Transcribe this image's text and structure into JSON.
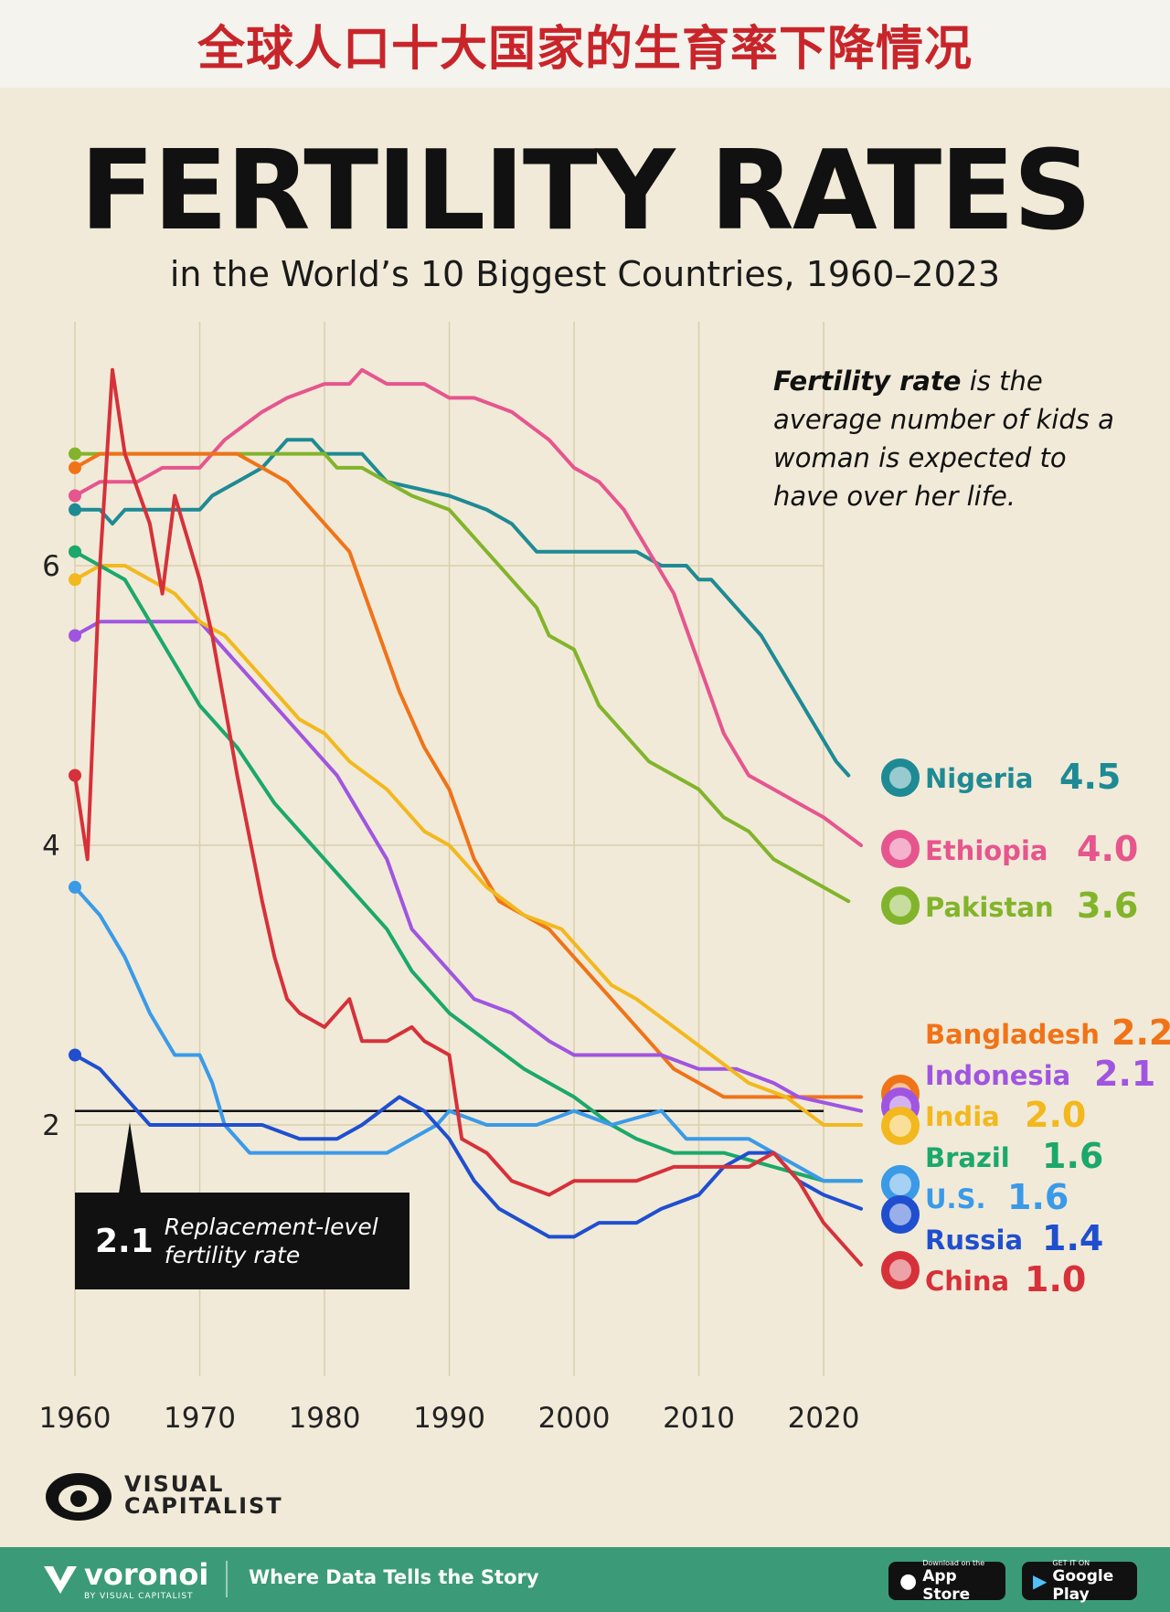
{
  "banner": {
    "text": "全球人口十大国家的生育率下降情况"
  },
  "header": {
    "title": "FERTILITY RATES",
    "subtitle": "in the World’s 10 Biggest Countries, 1960–2023"
  },
  "definition": {
    "term": "Fertility rate",
    "text": " is the average number of kids a woman is expected to have over her life."
  },
  "replacement": {
    "value": "2.1",
    "label_line1": "Replacement-level",
    "label_line2": "fertility rate"
  },
  "branding": {
    "logo_text_1": "VISUAL",
    "logo_text_2": "CAPITALIST",
    "voronoi": "voronoi",
    "voronoi_by": "BY VISUAL CAPITALIST",
    "tagline": "Where Data Tells the Story",
    "appstore_small": "Download on the",
    "appstore_big": "App Store",
    "googleplay_small": "GET IT ON",
    "googleplay_big": "Google Play"
  },
  "chart_data": {
    "type": "line",
    "title": "FERTILITY RATES",
    "subtitle": "in the World’s 10 Biggest Countries, 1960–2023",
    "x_ticks": [
      1960,
      1970,
      1980,
      1990,
      2000,
      2010,
      2020
    ],
    "y_ticks": [
      2,
      4,
      6
    ],
    "xlim": [
      1960,
      2023
    ],
    "ylim": [
      0,
      7.6
    ],
    "grid": "vertical",
    "reference_line": {
      "value": 2.1,
      "label": "Replacement-level fertility rate"
    },
    "series": [
      {
        "name": "Nigeria",
        "value_label": "4.5",
        "color": "#1e8a94",
        "icon": "nigeria-flag",
        "points": [
          [
            1960,
            6.4
          ],
          [
            1962,
            6.4
          ],
          [
            1963,
            6.3
          ],
          [
            1964,
            6.4
          ],
          [
            1970,
            6.4
          ],
          [
            1971,
            6.5
          ],
          [
            1973,
            6.6
          ],
          [
            1975,
            6.7
          ],
          [
            1977,
            6.9
          ],
          [
            1979,
            6.9
          ],
          [
            1980,
            6.8
          ],
          [
            1983,
            6.8
          ],
          [
            1985,
            6.6
          ],
          [
            1990,
            6.5
          ],
          [
            1993,
            6.4
          ],
          [
            1995,
            6.3
          ],
          [
            1997,
            6.1
          ],
          [
            2005,
            6.1
          ],
          [
            2007,
            6.0
          ],
          [
            2009,
            6.0
          ],
          [
            2010,
            5.9
          ],
          [
            2011,
            5.9
          ],
          [
            2013,
            5.7
          ],
          [
            2015,
            5.5
          ],
          [
            2017,
            5.2
          ],
          [
            2019,
            4.9
          ],
          [
            2021,
            4.6
          ],
          [
            2022,
            4.5
          ]
        ]
      },
      {
        "name": "Ethiopia",
        "value_label": "4.0",
        "color": "#e6558e",
        "icon": "ethiopia-flag",
        "points": [
          [
            1960,
            6.5
          ],
          [
            1962,
            6.6
          ],
          [
            1965,
            6.6
          ],
          [
            1967,
            6.7
          ],
          [
            1970,
            6.7
          ],
          [
            1972,
            6.9
          ],
          [
            1975,
            7.1
          ],
          [
            1977,
            7.2
          ],
          [
            1980,
            7.3
          ],
          [
            1982,
            7.3
          ],
          [
            1983,
            7.4
          ],
          [
            1985,
            7.3
          ],
          [
            1988,
            7.3
          ],
          [
            1990,
            7.2
          ],
          [
            1992,
            7.2
          ],
          [
            1995,
            7.1
          ],
          [
            1998,
            6.9
          ],
          [
            2000,
            6.7
          ],
          [
            2002,
            6.6
          ],
          [
            2004,
            6.4
          ],
          [
            2006,
            6.1
          ],
          [
            2008,
            5.8
          ],
          [
            2010,
            5.3
          ],
          [
            2012,
            4.8
          ],
          [
            2014,
            4.5
          ],
          [
            2016,
            4.4
          ],
          [
            2018,
            4.3
          ],
          [
            2020,
            4.2
          ],
          [
            2023,
            4.0
          ]
        ]
      },
      {
        "name": "Pakistan",
        "value_label": "3.6",
        "color": "#82b42b",
        "icon": "pakistan-flag",
        "points": [
          [
            1960,
            6.8
          ],
          [
            1965,
            6.8
          ],
          [
            1970,
            6.8
          ],
          [
            1975,
            6.8
          ],
          [
            1980,
            6.8
          ],
          [
            1981,
            6.7
          ],
          [
            1983,
            6.7
          ],
          [
            1985,
            6.6
          ],
          [
            1987,
            6.5
          ],
          [
            1990,
            6.4
          ],
          [
            1993,
            6.1
          ],
          [
            1995,
            5.9
          ],
          [
            1997,
            5.7
          ],
          [
            1998,
            5.5
          ],
          [
            2000,
            5.4
          ],
          [
            2002,
            5.0
          ],
          [
            2004,
            4.8
          ],
          [
            2006,
            4.6
          ],
          [
            2008,
            4.5
          ],
          [
            2010,
            4.4
          ],
          [
            2012,
            4.2
          ],
          [
            2014,
            4.1
          ],
          [
            2016,
            3.9
          ],
          [
            2018,
            3.8
          ],
          [
            2020,
            3.7
          ],
          [
            2022,
            3.6
          ]
        ]
      },
      {
        "name": "Bangladesh",
        "value_label": "2.2",
        "color": "#f07318",
        "icon": "bangladesh-flag",
        "points": [
          [
            1960,
            6.7
          ],
          [
            1962,
            6.8
          ],
          [
            1965,
            6.8
          ],
          [
            1970,
            6.8
          ],
          [
            1973,
            6.8
          ],
          [
            1975,
            6.7
          ],
          [
            1977,
            6.6
          ],
          [
            1979,
            6.4
          ],
          [
            1982,
            6.1
          ],
          [
            1984,
            5.6
          ],
          [
            1986,
            5.1
          ],
          [
            1988,
            4.7
          ],
          [
            1990,
            4.4
          ],
          [
            1992,
            3.9
          ],
          [
            1994,
            3.6
          ],
          [
            1996,
            3.5
          ],
          [
            1998,
            3.4
          ],
          [
            2000,
            3.2
          ],
          [
            2004,
            2.8
          ],
          [
            2006,
            2.6
          ],
          [
            2008,
            2.4
          ],
          [
            2010,
            2.3
          ],
          [
            2012,
            2.2
          ],
          [
            2016,
            2.2
          ],
          [
            2023,
            2.2
          ]
        ]
      },
      {
        "name": "Indonesia",
        "value_label": "2.1",
        "color": "#a055e0",
        "icon": "indonesia-flag",
        "points": [
          [
            1960,
            5.5
          ],
          [
            1962,
            5.6
          ],
          [
            1970,
            5.6
          ],
          [
            1973,
            5.3
          ],
          [
            1975,
            5.1
          ],
          [
            1978,
            4.8
          ],
          [
            1981,
            4.5
          ],
          [
            1983,
            4.2
          ],
          [
            1985,
            3.9
          ],
          [
            1987,
            3.4
          ],
          [
            1989,
            3.2
          ],
          [
            1992,
            2.9
          ],
          [
            1995,
            2.8
          ],
          [
            1998,
            2.6
          ],
          [
            2000,
            2.5
          ],
          [
            2004,
            2.5
          ],
          [
            2007,
            2.5
          ],
          [
            2010,
            2.4
          ],
          [
            2013,
            2.4
          ],
          [
            2016,
            2.3
          ],
          [
            2018,
            2.2
          ],
          [
            2023,
            2.1
          ]
        ]
      },
      {
        "name": "India",
        "value_label": "2.0",
        "color": "#f2b81e",
        "icon": "india-flag",
        "points": [
          [
            1960,
            5.9
          ],
          [
            1962,
            6.0
          ],
          [
            1964,
            6.0
          ],
          [
            1966,
            5.9
          ],
          [
            1968,
            5.8
          ],
          [
            1970,
            5.6
          ],
          [
            1972,
            5.5
          ],
          [
            1975,
            5.2
          ],
          [
            1978,
            4.9
          ],
          [
            1980,
            4.8
          ],
          [
            1982,
            4.6
          ],
          [
            1985,
            4.4
          ],
          [
            1988,
            4.1
          ],
          [
            1990,
            4.0
          ],
          [
            1993,
            3.7
          ],
          [
            1996,
            3.5
          ],
          [
            1999,
            3.4
          ],
          [
            2001,
            3.2
          ],
          [
            2003,
            3.0
          ],
          [
            2005,
            2.9
          ],
          [
            2008,
            2.7
          ],
          [
            2011,
            2.5
          ],
          [
            2014,
            2.3
          ],
          [
            2017,
            2.2
          ],
          [
            2020,
            2.0
          ],
          [
            2023,
            2.0
          ]
        ]
      },
      {
        "name": "Brazil",
        "value_label": "1.6",
        "color": "#1ba86b",
        "icon": "brazil-flag",
        "points": [
          [
            1960,
            6.1
          ],
          [
            1962,
            6.0
          ],
          [
            1964,
            5.9
          ],
          [
            1966,
            5.6
          ],
          [
            1968,
            5.3
          ],
          [
            1970,
            5.0
          ],
          [
            1973,
            4.7
          ],
          [
            1976,
            4.3
          ],
          [
            1979,
            4.0
          ],
          [
            1982,
            3.7
          ],
          [
            1985,
            3.4
          ],
          [
            1987,
            3.1
          ],
          [
            1990,
            2.8
          ],
          [
            1993,
            2.6
          ],
          [
            1996,
            2.4
          ],
          [
            1998,
            2.3
          ],
          [
            2000,
            2.2
          ],
          [
            2003,
            2.0
          ],
          [
            2005,
            1.9
          ],
          [
            2008,
            1.8
          ],
          [
            2012,
            1.8
          ],
          [
            2016,
            1.7
          ],
          [
            2020,
            1.6
          ],
          [
            2023,
            1.6
          ]
        ]
      },
      {
        "name": "U.S.",
        "value_label": "1.6",
        "color": "#3a9ae8",
        "icon": "us-flag",
        "points": [
          [
            1960,
            3.7
          ],
          [
            1962,
            3.5
          ],
          [
            1964,
            3.2
          ],
          [
            1966,
            2.8
          ],
          [
            1968,
            2.5
          ],
          [
            1970,
            2.5
          ],
          [
            1971,
            2.3
          ],
          [
            1972,
            2.0
          ],
          [
            1974,
            1.8
          ],
          [
            1976,
            1.8
          ],
          [
            1978,
            1.8
          ],
          [
            1980,
            1.8
          ],
          [
            1985,
            1.8
          ],
          [
            1987,
            1.9
          ],
          [
            1989,
            2.0
          ],
          [
            1990,
            2.1
          ],
          [
            1993,
            2.0
          ],
          [
            1997,
            2.0
          ],
          [
            2000,
            2.1
          ],
          [
            2003,
            2.0
          ],
          [
            2007,
            2.1
          ],
          [
            2009,
            1.9
          ],
          [
            2012,
            1.9
          ],
          [
            2014,
            1.9
          ],
          [
            2016,
            1.8
          ],
          [
            2018,
            1.7
          ],
          [
            2020,
            1.6
          ],
          [
            2023,
            1.6
          ]
        ]
      },
      {
        "name": "Russia",
        "value_label": "1.4",
        "color": "#1f4fcf",
        "icon": "russia-flag",
        "points": [
          [
            1960,
            2.5
          ],
          [
            1962,
            2.4
          ],
          [
            1964,
            2.2
          ],
          [
            1966,
            2.0
          ],
          [
            1970,
            2.0
          ],
          [
            1975,
            2.0
          ],
          [
            1978,
            1.9
          ],
          [
            1981,
            1.9
          ],
          [
            1983,
            2.0
          ],
          [
            1986,
            2.2
          ],
          [
            1988,
            2.1
          ],
          [
            1990,
            1.9
          ],
          [
            1992,
            1.6
          ],
          [
            1994,
            1.4
          ],
          [
            1996,
            1.3
          ],
          [
            1998,
            1.2
          ],
          [
            2000,
            1.2
          ],
          [
            2002,
            1.3
          ],
          [
            2005,
            1.3
          ],
          [
            2007,
            1.4
          ],
          [
            2010,
            1.5
          ],
          [
            2012,
            1.7
          ],
          [
            2014,
            1.8
          ],
          [
            2016,
            1.8
          ],
          [
            2018,
            1.6
          ],
          [
            2020,
            1.5
          ],
          [
            2023,
            1.4
          ]
        ]
      },
      {
        "name": "China",
        "value_label": "1.0",
        "color": "#d6313a",
        "icon": "china-flag",
        "points": [
          [
            1960,
            4.5
          ],
          [
            1961,
            3.9
          ],
          [
            1962,
            6.0
          ],
          [
            1963,
            7.4
          ],
          [
            1964,
            6.8
          ],
          [
            1966,
            6.3
          ],
          [
            1967,
            5.8
          ],
          [
            1968,
            6.5
          ],
          [
            1969,
            6.2
          ],
          [
            1970,
            5.9
          ],
          [
            1971,
            5.5
          ],
          [
            1973,
            4.5
          ],
          [
            1975,
            3.6
          ],
          [
            1976,
            3.2
          ],
          [
            1977,
            2.9
          ],
          [
            1978,
            2.8
          ],
          [
            1980,
            2.7
          ],
          [
            1982,
            2.9
          ],
          [
            1983,
            2.6
          ],
          [
            1985,
            2.6
          ],
          [
            1987,
            2.7
          ],
          [
            1988,
            2.6
          ],
          [
            1990,
            2.5
          ],
          [
            1991,
            1.9
          ],
          [
            1993,
            1.8
          ],
          [
            1995,
            1.6
          ],
          [
            1998,
            1.5
          ],
          [
            2000,
            1.6
          ],
          [
            2005,
            1.6
          ],
          [
            2008,
            1.7
          ],
          [
            2012,
            1.7
          ],
          [
            2014,
            1.7
          ],
          [
            2016,
            1.8
          ],
          [
            2017,
            1.7
          ],
          [
            2018,
            1.6
          ],
          [
            2020,
            1.3
          ],
          [
            2022,
            1.1
          ],
          [
            2023,
            1.0
          ]
        ]
      }
    ]
  }
}
